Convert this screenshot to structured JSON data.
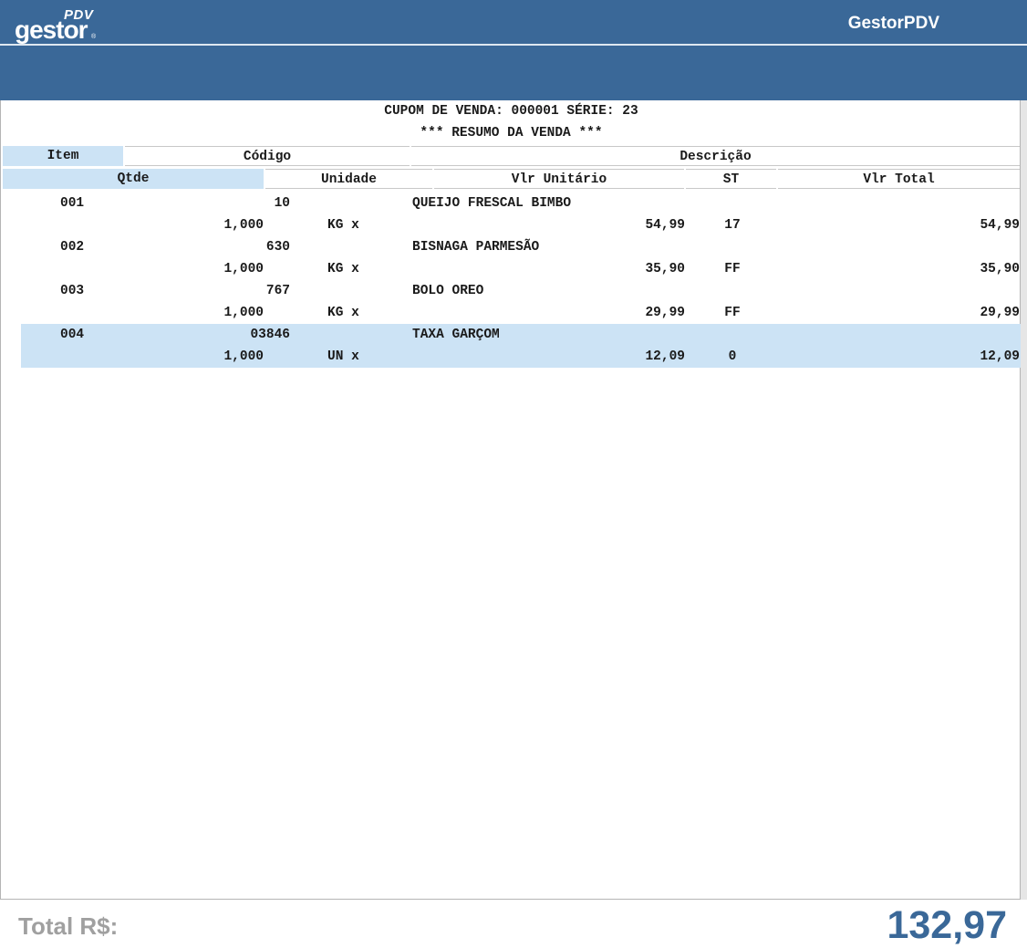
{
  "header": {
    "logo_pdv": "PDV",
    "logo_main": "gestor",
    "logo_reg": "®",
    "app_title": "GestorPDV"
  },
  "receipt": {
    "coupon_line": "CUPOM DE VENDA: 000001  SÉRIE: 23",
    "summary_line": "*** RESUMO DA VENDA ***"
  },
  "columns": {
    "item": "Item",
    "codigo": "Código",
    "descricao": "Descrição",
    "qtde": "Qtde",
    "unidade": "Unidade",
    "vlr_unitario": "Vlr Unitário",
    "st": "ST",
    "vlr_total": "Vlr Total"
  },
  "items": [
    {
      "item": "001",
      "codigo": "10",
      "descricao": "QUEIJO FRESCAL BIMBO",
      "qtde": "1,000",
      "unidade": "KG x",
      "vlr_unitario": "54,99",
      "st": "17",
      "vlr_total": "54,99"
    },
    {
      "item": "002",
      "codigo": "630",
      "descricao": "BISNAGA PARMESÃO",
      "qtde": "1,000",
      "unidade": "KG x",
      "vlr_unitario": "35,90",
      "st": "FF",
      "vlr_total": "35,90"
    },
    {
      "item": "003",
      "codigo": "767",
      "descricao": "BOLO OREO",
      "qtde": "1,000",
      "unidade": "KG x",
      "vlr_unitario": "29,99",
      "st": "FF",
      "vlr_total": "29,99"
    },
    {
      "item": "004",
      "codigo": "03846",
      "descricao": "TAXA GARÇOM",
      "qtde": "1,000",
      "unidade": "UN x",
      "vlr_unitario": "12,09",
      "st": "0",
      "vlr_total": "12,09"
    }
  ],
  "selected_item": "004",
  "footer": {
    "total_label": "Total R$:",
    "total_value": "132,97"
  },
  "colors": {
    "brand": "#3a6898",
    "highlight": "#cce3f5"
  }
}
